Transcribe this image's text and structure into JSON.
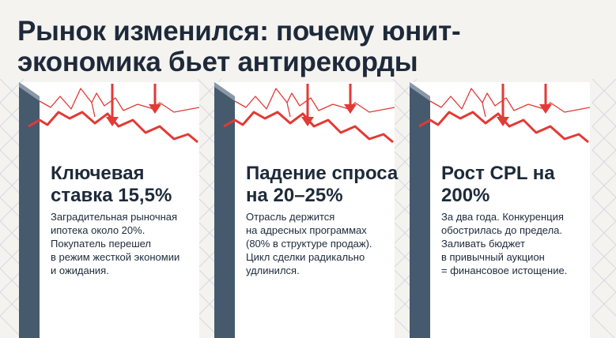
{
  "title": "Рынок изменился: почему юнит-экономика бьет антирекорды",
  "colors": {
    "accent": "#e23a35",
    "dark": "#465a6e",
    "text": "#1e2a3a"
  },
  "cards": [
    {
      "heading": "Ключевая ставка 15,5%",
      "text": "Заградительная рыночная\nипотека около 20%.\nПокупатель перешел\nв режим жесткой экономии\nи ожидания."
    },
    {
      "heading": "Падение спроса на 20–25%",
      "text": "Отрасль держится\nна адресных программах\n(80% в структуре продаж).\nЦикл сделки радикально\nудлинился."
    },
    {
      "heading": "Рост CPL на 200%",
      "text": "За два года. Конкуренция\nобострилась до предела.\nЗаливать бюджет\nв привычный аукцион\n= финансовое истощение."
    }
  ]
}
